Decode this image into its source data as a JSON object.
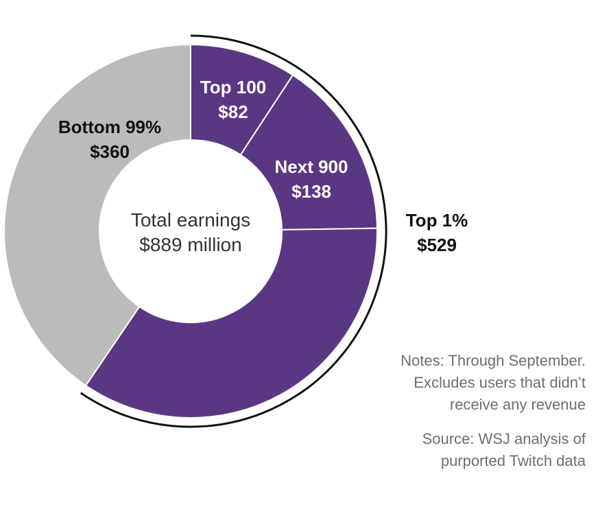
{
  "chart_data": {
    "type": "pie",
    "slices": [
      {
        "label": "Top 100",
        "value": 82,
        "value_text": "$82",
        "color": "#5a3783"
      },
      {
        "label": "Next 900",
        "value": 138,
        "value_text": "$138",
        "color": "#5a3783"
      },
      {
        "label": "",
        "value": 309,
        "value_text": "",
        "color": "#5a3783"
      },
      {
        "label": "Bottom 99%",
        "value": 360,
        "value_text": "$360",
        "color": "#bbbbbb"
      }
    ],
    "center_text": [
      "Total earnings",
      "$889 million"
    ],
    "group_annotation": {
      "label": "Top 1%",
      "value_text": "$529",
      "value": 529
    }
  },
  "notes": [
    "Notes: Through September.",
    "Excludes users that didn’t",
    "receive any revenue"
  ],
  "source": [
    "Source: WSJ analysis of",
    "purported Twitch data"
  ]
}
